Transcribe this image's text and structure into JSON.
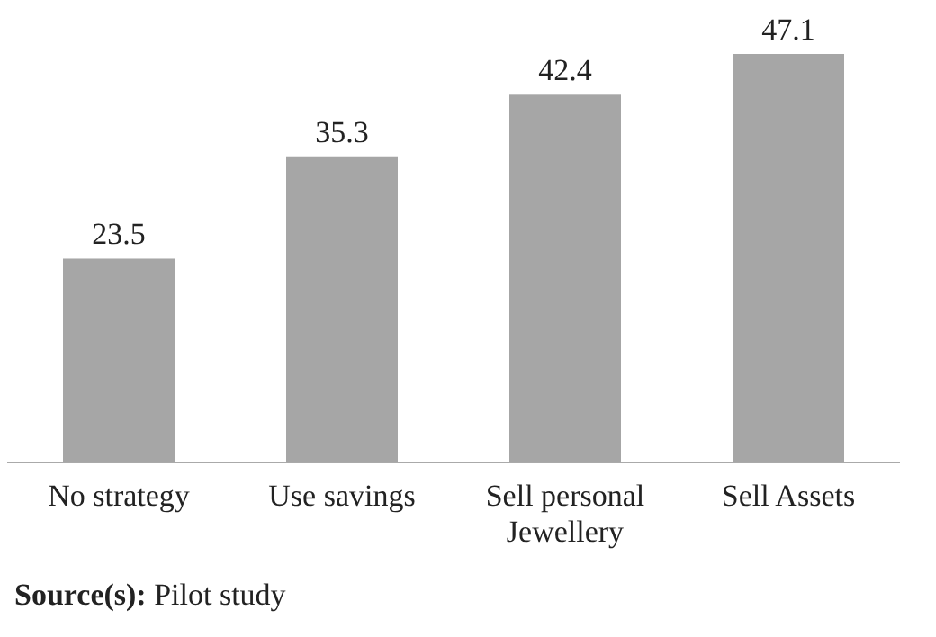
{
  "chart_data": {
    "type": "bar",
    "categories": [
      "No strategy",
      "Use savings",
      "Sell personal Jewellery",
      "Sell Assets"
    ],
    "values": [
      23.5,
      35.3,
      42.4,
      47.1
    ],
    "color": "#a6a6a6",
    "data_labels": true,
    "annotations": [
      "Source(s): Pilot study"
    ]
  }
}
